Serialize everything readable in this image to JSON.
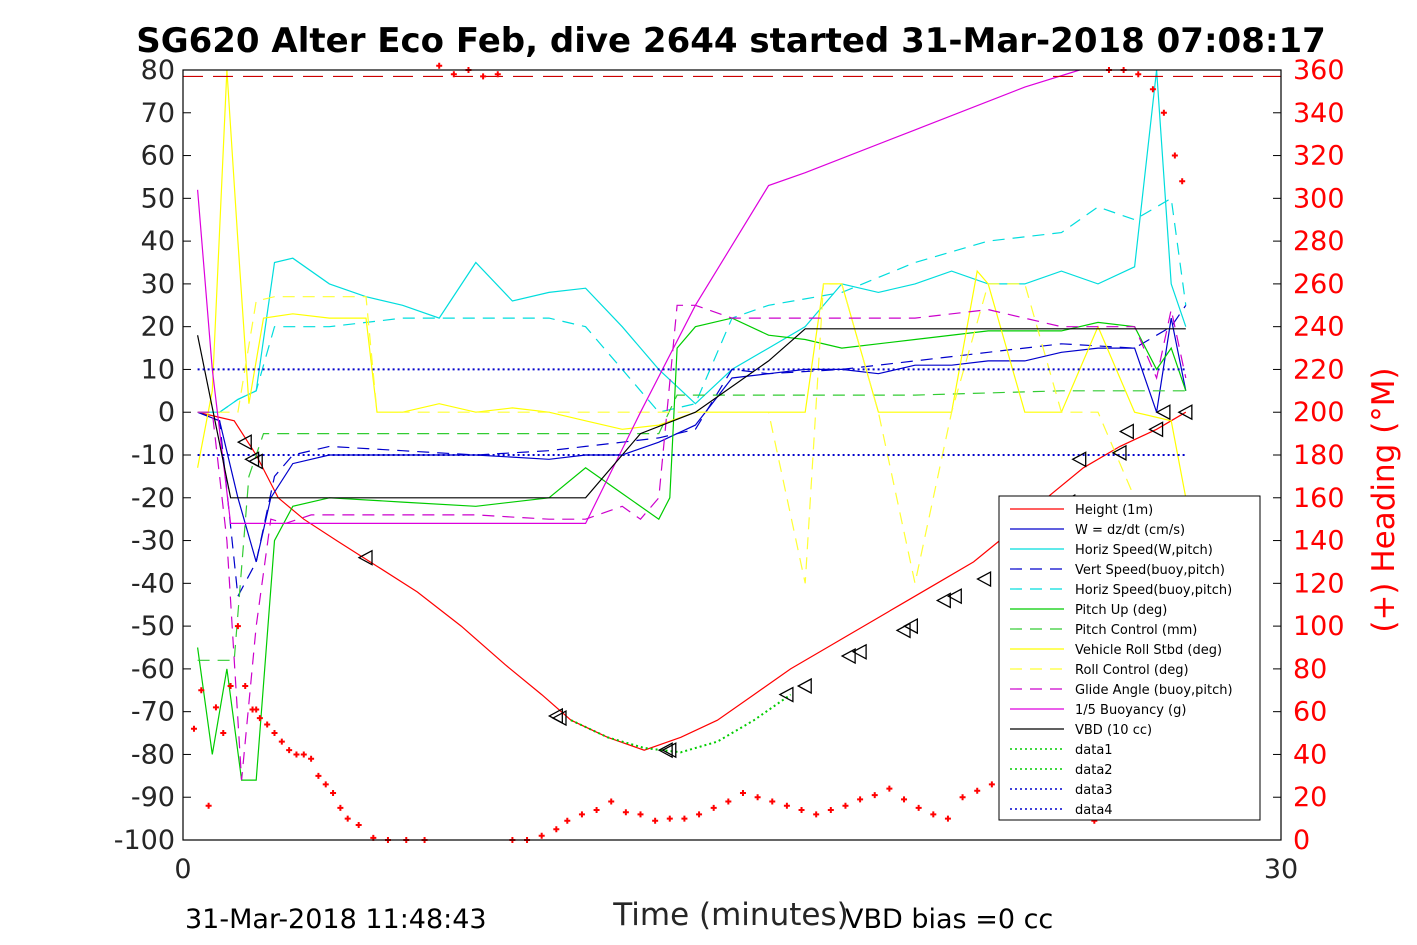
{
  "chart_data": {
    "type": "line",
    "title": "SG620 Alter Eco Feb, dive 2644 started 31-Mar-2018 07:08:17",
    "xlabel": "Time (minutes)",
    "y2label": "(+) Heading (°M)",
    "xlim": [
      0,
      30
    ],
    "ylim": [
      -100,
      80
    ],
    "y2lim": [
      0,
      360
    ],
    "x_ticks": [
      "0",
      "30"
    ],
    "y_ticks": [
      "80",
      "70",
      "60",
      "50",
      "40",
      "30",
      "20",
      "10",
      "0",
      "-10",
      "-20",
      "-30",
      "-40",
      "-50",
      "-60",
      "-70",
      "-80",
      "-90",
      "-100"
    ],
    "y2_ticks": [
      "360",
      "340",
      "320",
      "300",
      "280",
      "260",
      "240",
      "220",
      "200",
      "180",
      "160",
      "140",
      "120",
      "100",
      "80",
      "60",
      "40",
      "20",
      "0"
    ],
    "footer_left": "31-Mar-2018 11:48:43",
    "footer_right": "VBD bias =0 cc",
    "legend_position": "bottom-right",
    "grid": false,
    "series": [
      {
        "name": "Height (1m)",
        "color": "#ff0000",
        "dash": "solid",
        "x": [
          0.4,
          0.9,
          1.4,
          2.0,
          2.6,
          3.3,
          4.2,
          5.3,
          6.4,
          7.6,
          8.8,
          9.8,
          10.6,
          11.6,
          12.6,
          13.6,
          14.6,
          15.6,
          16.6,
          17.6,
          18.6,
          19.6,
          20.6,
          21.6,
          22.6,
          23.6,
          24.6,
          25.6,
          26.6,
          27.4
        ],
        "y": [
          0,
          -1,
          -2,
          -10,
          -20,
          -25,
          -30,
          -36,
          -42,
          -50,
          -59,
          -66,
          -72,
          -76,
          -79,
          -76,
          -72,
          -66,
          -60,
          -55,
          -50,
          -45,
          -40,
          -35,
          -28,
          -20,
          -13,
          -8,
          -4,
          0
        ]
      },
      {
        "name": "W = dz/dt (cm/s)",
        "color": "#0000cc",
        "dash": "solid",
        "x": [
          0.4,
          1.0,
          1.5,
          2.0,
          2.4,
          3.0,
          4.0,
          6.0,
          8.0,
          10.0,
          11.0,
          12.0,
          13.0,
          13.5,
          14.0,
          15.0,
          16.0,
          17.0,
          18.0,
          19.0,
          20.0,
          21.0,
          22.0,
          23.0,
          24.0,
          25.0,
          26.0,
          26.6,
          27.0,
          27.4
        ],
        "y": [
          0,
          -2,
          -20,
          -35,
          -20,
          -12,
          -10,
          -10,
          -10,
          -11,
          -10,
          -10,
          -7,
          -5,
          -3,
          8,
          9,
          10,
          10,
          9,
          11,
          11,
          12,
          12,
          14,
          15,
          15,
          0,
          22,
          5
        ]
      },
      {
        "name": "Horiz Speed(W,pitch)",
        "color": "#00dddd",
        "dash": "solid",
        "x": [
          0.4,
          1.0,
          1.5,
          2.0,
          2.5,
          3.0,
          4.0,
          5.0,
          6.0,
          7.0,
          8.0,
          9.0,
          10.0,
          11.0,
          12.0,
          13.0,
          14.0,
          15.0,
          16.0,
          17.0,
          18.0,
          19.0,
          20.0,
          21.0,
          22.0,
          23.0,
          24.0,
          25.0,
          26.0,
          26.6,
          27.0,
          27.4
        ],
        "y": [
          0,
          0,
          3,
          5,
          35,
          36,
          30,
          27,
          25,
          22,
          35,
          26,
          28,
          29,
          20,
          10,
          2,
          10,
          15,
          20,
          30,
          28,
          30,
          33,
          30,
          30,
          33,
          30,
          34,
          80,
          30,
          20
        ]
      },
      {
        "name": "Vert Speed(buoy,pitch)",
        "color": "#0000cc",
        "dash": "dash",
        "x": [
          0.4,
          1.0,
          1.5,
          2.0,
          2.5,
          3.0,
          4.0,
          6.0,
          8.0,
          10.0,
          11.0,
          12.0,
          13.0,
          14.0,
          15.0,
          16.0,
          18.0,
          20.0,
          22.0,
          24.0,
          26.0,
          27.0,
          27.4
        ],
        "y": [
          0,
          -2,
          -43,
          -35,
          -15,
          -10,
          -8,
          -9,
          -10,
          -9,
          -8,
          -7,
          -6,
          -4,
          10,
          9,
          10,
          12,
          14,
          16,
          15,
          20,
          25
        ]
      },
      {
        "name": "Horiz Speed(buoy,pitch)",
        "color": "#00dddd",
        "dash": "dash",
        "x": [
          0.4,
          1.0,
          1.5,
          2.0,
          2.5,
          3.0,
          4.0,
          6.0,
          8.0,
          10.0,
          11.0,
          12.0,
          13.0,
          14.0,
          15.0,
          16.0,
          18.0,
          20.0,
          22.0,
          24.0,
          25.0,
          26.0,
          26.6,
          27.0,
          27.4
        ],
        "y": [
          0,
          0,
          3,
          5,
          20,
          20,
          20,
          22,
          22,
          22,
          20,
          10,
          0,
          2,
          22,
          25,
          28,
          35,
          40,
          42,
          48,
          45,
          48,
          50,
          25
        ]
      },
      {
        "name": "Pitch Up (deg)",
        "color": "#00cc00",
        "dash": "solid",
        "x": [
          0.4,
          0.8,
          1.2,
          1.6,
          2.0,
          2.5,
          3.0,
          4.0,
          6.0,
          8.0,
          10.0,
          11.0,
          12.0,
          13.0,
          13.3,
          13.5,
          14.0,
          15.0,
          16.0,
          17.0,
          18.0,
          20.0,
          22.0,
          24.0,
          25.0,
          26.0,
          26.6,
          27.0,
          27.4
        ],
        "y": [
          -55,
          -80,
          -60,
          -86,
          -86,
          -30,
          -22,
          -20,
          -21,
          -22,
          -20,
          -13,
          -19,
          -25,
          -20,
          15,
          20,
          22,
          18,
          17,
          15,
          17,
          19,
          19,
          21,
          20,
          10,
          15,
          5
        ]
      },
      {
        "name": "Pitch Control (mm)",
        "color": "#33cc33",
        "dash": "dash",
        "x": [
          0.4,
          1.0,
          1.4,
          1.8,
          2.2,
          2.5,
          3.0,
          6.0,
          10.0,
          13.0,
          13.5,
          14.0,
          16.0,
          20.0,
          24.0,
          27.4
        ],
        "y": [
          -58,
          -58,
          -58,
          -15,
          -5,
          -5,
          -5,
          -5,
          -5,
          -5,
          4,
          4,
          4,
          4,
          5,
          5
        ]
      },
      {
        "name": "Vehicle Roll Stbd (deg)",
        "color": "#ffff00",
        "dash": "solid",
        "x": [
          0.4,
          0.8,
          1.2,
          1.5,
          1.8,
          2.2,
          3.0,
          4.0,
          5.0,
          5.3,
          6.0,
          7.0,
          8.0,
          9.0,
          10.0,
          11.0,
          12.0,
          13.0,
          14.0,
          15.0,
          16.0,
          17.0,
          17.5,
          18.0,
          19.0,
          20.0,
          21.0,
          21.7,
          22.0,
          23.0,
          24.0,
          25.0,
          26.0,
          27.0,
          27.4
        ],
        "y": [
          -13,
          5,
          80,
          40,
          2,
          22,
          23,
          22,
          22,
          0,
          0,
          2,
          0,
          1,
          0,
          -2,
          -4,
          -3,
          0,
          0,
          0,
          0,
          30,
          30,
          0,
          0,
          0,
          33,
          30,
          0,
          0,
          20,
          0,
          -2,
          -20
        ]
      },
      {
        "name": "Roll Control (deg)",
        "color": "#ffff33",
        "dash": "dash",
        "x": [
          0.4,
          1.5,
          2.0,
          2.5,
          4.0,
          5.0,
          5.3,
          6.0,
          8.0,
          10.0,
          12.0,
          13.0,
          14.0,
          15.0,
          16.0,
          17.0,
          17.5,
          18.0,
          19.0,
          20.0,
          21.0,
          22.0,
          23.0,
          24.0,
          25.0,
          26.0,
          27.0
        ],
        "y": [
          0,
          0,
          26,
          27,
          27,
          27,
          0,
          0,
          0,
          0,
          0,
          0,
          0,
          0,
          0,
          -40,
          30,
          30,
          0,
          -40,
          0,
          30,
          30,
          0,
          0,
          -20,
          -40
        ]
      },
      {
        "name": "Glide Angle (buoy,pitch)",
        "color": "#cc00cc",
        "dash": "dash",
        "x": [
          0.4,
          0.8,
          1.2,
          1.6,
          2.0,
          2.4,
          2.8,
          3.5,
          6.0,
          8.0,
          10.0,
          11.0,
          12.0,
          12.5,
          13.0,
          13.5,
          14.0,
          15.0,
          16.0,
          18.0,
          20.0,
          22.0,
          24.0,
          25.0,
          26.0,
          26.6,
          27.0,
          27.4
        ],
        "y": [
          0,
          0,
          -30,
          -86,
          -50,
          -25,
          -26,
          -24,
          -24,
          -24,
          -25,
          -25,
          -22,
          -25,
          -20,
          25,
          25,
          22,
          22,
          22,
          22,
          24,
          20,
          20,
          20,
          8,
          24,
          8
        ]
      },
      {
        "name": "1/5 Buoyancy (g)",
        "color": "#dd00dd",
        "dash": "solid",
        "x": [
          0.4,
          0.8,
          1.3,
          2.0,
          4.0,
          6.0,
          8.0,
          10.0,
          11.0,
          12.5,
          14.0,
          16.0,
          17.0,
          20.0,
          23.0,
          24.5
        ],
        "y": [
          52,
          10,
          -26,
          -26,
          -26,
          -26,
          -26,
          -26,
          -26,
          0,
          25,
          53,
          56,
          66,
          76,
          80
        ]
      },
      {
        "name": "VBD (10 cc)",
        "color": "#000000",
        "dash": "solid",
        "x": [
          0.4,
          1.3,
          6.0,
          10.0,
          11.0,
          12.5,
          14.0,
          16.0,
          17.0,
          20.0,
          24.0,
          27.4
        ],
        "y": [
          18,
          -20,
          -20,
          -20,
          -20,
          -5,
          0,
          12,
          19.5,
          19.5,
          19.5,
          19.5
        ]
      },
      {
        "name": "data1",
        "color": "#00cc00",
        "dash": "dot",
        "x": [
          10.6,
          11.6,
          12.6,
          13.6,
          14.6,
          15.6,
          16.6
        ],
        "y": [
          -72,
          -76,
          -78.5,
          -79.5,
          -77,
          -72,
          -66
        ]
      },
      {
        "name": "data2",
        "color": "#00cc00",
        "dash": "dot",
        "x": [],
        "y": []
      },
      {
        "name": "data3",
        "color": "#0000cc",
        "dash": "dot",
        "x": [
          0.4,
          27.4
        ],
        "y": [
          10,
          10
        ]
      },
      {
        "name": "data4",
        "color": "#0000cc",
        "dash": "dot",
        "x": [
          0.4,
          27.4
        ],
        "y": [
          -10,
          -10
        ]
      }
    ],
    "reference_line": {
      "color": "#cc0000",
      "dash": "dash",
      "y": 78.5
    },
    "triangle_markers": {
      "x": [
        1.7,
        1.9,
        2.0,
        5.0,
        10.2,
        10.3,
        13.2,
        13.3,
        16.5,
        17.0,
        18.2,
        18.5,
        19.7,
        19.9,
        20.8,
        21.1,
        21.9,
        22.6,
        22.8,
        23.3,
        24.2,
        24.5,
        25.6,
        25.8,
        26.6,
        26.8,
        27.4
      ],
      "y": [
        -7,
        -11,
        -11.5,
        -34,
        -71,
        -71.5,
        -79,
        -79,
        -66,
        -64,
        -57,
        -56,
        -51,
        -50,
        -44,
        -43,
        -39,
        -30,
        -28,
        -22,
        -21,
        -11,
        -9.5,
        -4.5,
        -4,
        0,
        0
      ]
    },
    "heading_points": {
      "color": "#ff0000",
      "axis": "y2",
      "x": [
        0.3,
        0.5,
        0.7,
        0.9,
        1.1,
        1.3,
        1.5,
        1.7,
        1.9,
        2.0,
        2.1,
        2.3,
        2.5,
        2.7,
        2.9,
        3.1,
        3.3,
        3.5,
        3.7,
        3.9,
        4.1,
        4.3,
        4.5,
        4.8,
        5.2,
        5.6,
        6.1,
        6.6,
        7.0,
        7.4,
        7.8,
        8.2,
        8.6,
        9.0,
        9.4,
        9.8,
        10.2,
        10.5,
        10.9,
        11.3,
        11.7,
        12.1,
        12.5,
        12.9,
        13.3,
        13.7,
        14.1,
        14.5,
        14.9,
        15.3,
        15.7,
        16.1,
        16.5,
        16.9,
        17.3,
        17.7,
        18.1,
        18.5,
        18.9,
        19.3,
        19.7,
        20.1,
        20.5,
        20.9,
        21.3,
        21.7,
        22.1,
        22.5,
        22.9,
        23.3,
        23.7,
        24.1,
        24.5,
        24.9,
        25.3,
        25.7,
        26.1,
        26.5,
        26.8,
        27.1,
        27.3
      ],
      "y": [
        52,
        70,
        16,
        62,
        50,
        72,
        100,
        72,
        61,
        61,
        57,
        54,
        50,
        46,
        42,
        40,
        40,
        38,
        30,
        26,
        22,
        15,
        10,
        7,
        1,
        0,
        0,
        0,
        362,
        358,
        360,
        357,
        358,
        0,
        0,
        2,
        5,
        9,
        12,
        14,
        18,
        13,
        12,
        9,
        10,
        10,
        12,
        15,
        18,
        22,
        20,
        18,
        16,
        14,
        12,
        14,
        16,
        19,
        21,
        24,
        19,
        15,
        12,
        10,
        20,
        23,
        26,
        28,
        32,
        35,
        28,
        24,
        18,
        9,
        360,
        360,
        358,
        351,
        340,
        320,
        308
      ]
    }
  }
}
